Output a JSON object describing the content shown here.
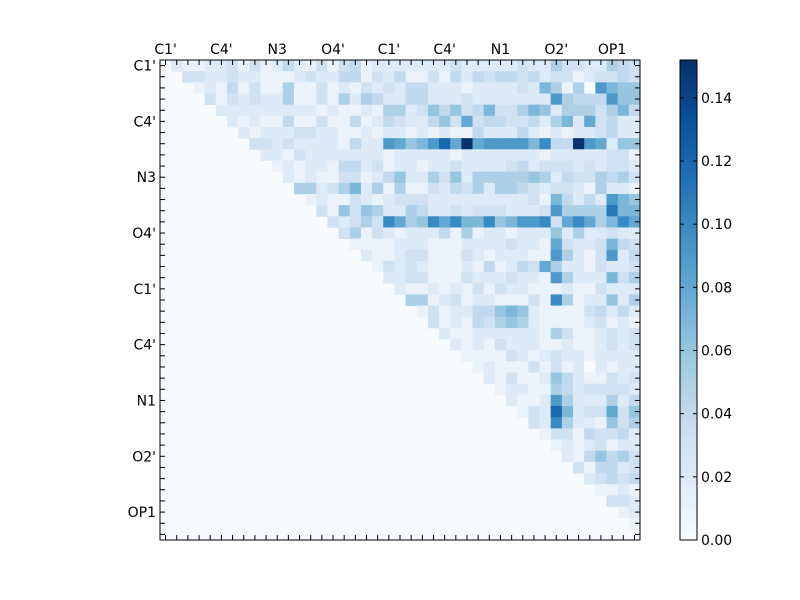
{
  "chart_data": {
    "type": "heatmap",
    "title": "",
    "xlabel": "",
    "ylabel": "",
    "size": 43,
    "tick_every": 5,
    "x_tick_labels": [
      "C1'",
      "C4'",
      "N3",
      "O4'",
      "C1'",
      "C4'",
      "N1",
      "O2'",
      "OP1"
    ],
    "y_tick_labels": [
      "C1'",
      "C4'",
      "N3",
      "O4'",
      "C1'",
      "C4'",
      "N1",
      "O2'",
      "OP1"
    ],
    "colormap": "Blues",
    "colormap_stops": [
      "#f7fbff",
      "#deebf7",
      "#c6dbef",
      "#9ecae1",
      "#6baed6",
      "#4292c6",
      "#2171b5",
      "#08519c",
      "#08306b"
    ],
    "vmin": 0.0,
    "vmax": 0.152,
    "colorbar_ticks": [
      "0.00",
      "0.02",
      "0.04",
      "0.06",
      "0.08",
      "0.10",
      "0.12",
      "0.14"
    ],
    "matrix_note": "upper triangle rows; row i lists columns i+1..42, all other cells 0",
    "upper_triangle_rows": [
      [
        0.02,
        0.01,
        0.01,
        0.02,
        0.02,
        0.03,
        0.01,
        0.03,
        0.01,
        0.02,
        0.04,
        0.02,
        0.01,
        0.03,
        0.01,
        0.03,
        0.04,
        0.01,
        0.02,
        0.02,
        0.02,
        0.02,
        0.02,
        0.02,
        0.02,
        0.03,
        0.02,
        0.02,
        0.02,
        0.02,
        0.02,
        0.03,
        0.02,
        0.02,
        0.05,
        0.03,
        0.03,
        0.02,
        0.02,
        0.05,
        0.04,
        0.03
      ],
      [
        0.03,
        0.03,
        0.02,
        0.02,
        0.03,
        0.02,
        0.02,
        0.01,
        0.01,
        0.01,
        0.02,
        0.03,
        0.02,
        0.02,
        0.04,
        0.04,
        0.01,
        0.03,
        0.02,
        0.04,
        0.01,
        0.01,
        0.03,
        0.01,
        0.04,
        0.02,
        0.04,
        0.03,
        0.04,
        0.04,
        0.03,
        0.04,
        0.02,
        0.03,
        0.03,
        0.01,
        0.02,
        0.03,
        0.03,
        0.04,
        0.03
      ],
      [
        0.01,
        0.02,
        0.01,
        0.04,
        0.01,
        0.03,
        0.01,
        0.01,
        0.05,
        0.01,
        0.01,
        0.03,
        0.01,
        0.02,
        0.01,
        0.03,
        0.02,
        0.03,
        0.02,
        0.04,
        0.04,
        0.02,
        0.02,
        0.02,
        0.01,
        0.02,
        0.02,
        0.02,
        0.02,
        0.03,
        0.02,
        0.07,
        0.05,
        0.01,
        0.05,
        0.0,
        0.09,
        0.07,
        0.06,
        0.06
      ],
      [
        0.03,
        0.01,
        0.03,
        0.02,
        0.03,
        0.02,
        0.02,
        0.05,
        0.01,
        0.01,
        0.03,
        0.01,
        0.05,
        0.02,
        0.05,
        0.04,
        0.02,
        0.02,
        0.04,
        0.04,
        0.02,
        0.02,
        0.02,
        0.03,
        0.02,
        0.02,
        0.02,
        0.02,
        0.02,
        0.02,
        0.02,
        0.09,
        0.05,
        0.04,
        0.04,
        0.04,
        0.09,
        0.06,
        0.06
      ],
      [
        0.02,
        0.02,
        0.02,
        0.02,
        0.02,
        0.02,
        0.02,
        0.02,
        0.02,
        0.01,
        0.02,
        0.01,
        0.01,
        0.02,
        0.01,
        0.05,
        0.05,
        0.02,
        0.03,
        0.06,
        0.04,
        0.06,
        0.03,
        0.04,
        0.07,
        0.03,
        0.03,
        0.05,
        0.07,
        0.06,
        0.02,
        0.05,
        0.05,
        0.05,
        0.03,
        0.05,
        0.07,
        0.04
      ],
      [
        0.02,
        0.01,
        0.02,
        0.01,
        0.01,
        0.04,
        0.01,
        0.01,
        0.03,
        0.01,
        0.01,
        0.04,
        0.01,
        0.02,
        0.04,
        0.03,
        0.02,
        0.02,
        0.04,
        0.06,
        0.03,
        0.08,
        0.03,
        0.04,
        0.04,
        0.03,
        0.03,
        0.04,
        0.02,
        0.05,
        0.07,
        0.02,
        0.08,
        0.03,
        0.04,
        0.02,
        0.02
      ],
      [
        0.02,
        0.01,
        0.02,
        0.02,
        0.02,
        0.03,
        0.03,
        0.02,
        0.02,
        0.01,
        0.01,
        0.02,
        0.01,
        0.02,
        0.02,
        0.01,
        0.02,
        0.01,
        0.02,
        0.01,
        0.01,
        0.04,
        0.02,
        0.02,
        0.02,
        0.04,
        0.02,
        0.01,
        0.02,
        0.01,
        0.02,
        0.02,
        0.03,
        0.04,
        0.02,
        0.02
      ],
      [
        0.03,
        0.03,
        0.02,
        0.03,
        0.02,
        0.02,
        0.02,
        0.02,
        0.01,
        0.04,
        0.02,
        0.02,
        0.09,
        0.08,
        0.06,
        0.07,
        0.09,
        0.12,
        0.08,
        0.15,
        0.08,
        0.09,
        0.09,
        0.09,
        0.09,
        0.07,
        0.1,
        0.04,
        0.04,
        0.15,
        0.09,
        0.08,
        0.02,
        0.06,
        0.06
      ],
      [
        0.02,
        0.02,
        0.01,
        0.03,
        0.02,
        0.02,
        0.02,
        0.02,
        0.02,
        0.02,
        0.02,
        0.01,
        0.02,
        0.02,
        0.02,
        0.02,
        0.02,
        0.01,
        0.02,
        0.02,
        0.02,
        0.02,
        0.02,
        0.02,
        0.02,
        0.01,
        0.02,
        0.02,
        0.02,
        0.02,
        0.02,
        0.03,
        0.03,
        0.01
      ],
      [
        0.01,
        0.02,
        0.01,
        0.02,
        0.02,
        0.01,
        0.04,
        0.04,
        0.02,
        0.03,
        0.01,
        0.02,
        0.02,
        0.01,
        0.02,
        0.02,
        0.03,
        0.02,
        0.02,
        0.02,
        0.02,
        0.03,
        0.04,
        0.02,
        0.03,
        0.03,
        0.03,
        0.02,
        0.03,
        0.02,
        0.03,
        0.03,
        0.02
      ],
      [
        0.02,
        0.01,
        0.02,
        0.01,
        0.01,
        0.03,
        0.03,
        0.01,
        0.02,
        0.04,
        0.06,
        0.02,
        0.02,
        0.05,
        0.03,
        0.06,
        0.02,
        0.05,
        0.05,
        0.05,
        0.05,
        0.05,
        0.06,
        0.05,
        0.02,
        0.04,
        0.03,
        0.03,
        0.05,
        0.04,
        0.05,
        0.03
      ],
      [
        0.05,
        0.05,
        0.02,
        0.03,
        0.05,
        0.07,
        0.02,
        0.05,
        0.01,
        0.05,
        0.01,
        0.01,
        0.03,
        0.02,
        0.04,
        0.03,
        0.05,
        0.02,
        0.05,
        0.05,
        0.04,
        0.03,
        0.02,
        0.03,
        0.03,
        0.02,
        0.01,
        0.05,
        0.02,
        0.02,
        0.01
      ],
      [
        0.01,
        0.02,
        0.01,
        0.01,
        0.03,
        0.02,
        0.01,
        0.02,
        0.03,
        0.03,
        0.03,
        0.02,
        0.02,
        0.02,
        0.02,
        0.02,
        0.02,
        0.02,
        0.02,
        0.02,
        0.03,
        0.01,
        0.07,
        0.04,
        0.02,
        0.04,
        0.02,
        0.09,
        0.07,
        0.06
      ],
      [
        0.03,
        0.01,
        0.06,
        0.03,
        0.06,
        0.05,
        0.02,
        0.02,
        0.05,
        0.04,
        0.02,
        0.02,
        0.03,
        0.02,
        0.03,
        0.03,
        0.03,
        0.02,
        0.02,
        0.02,
        0.03,
        0.09,
        0.05,
        0.05,
        0.05,
        0.05,
        0.11,
        0.07,
        0.07
      ],
      [
        0.03,
        0.02,
        0.03,
        0.05,
        0.03,
        0.1,
        0.08,
        0.05,
        0.06,
        0.1,
        0.08,
        0.1,
        0.07,
        0.07,
        0.1,
        0.06,
        0.07,
        0.09,
        0.09,
        0.1,
        0.03,
        0.08,
        0.1,
        0.08,
        0.05,
        0.07,
        0.1,
        0.08
      ],
      [
        0.03,
        0.05,
        0.01,
        0.03,
        0.02,
        0.01,
        0.02,
        0.02,
        0.02,
        0.04,
        0.01,
        0.05,
        0.01,
        0.02,
        0.02,
        0.01,
        0.02,
        0.02,
        0.02,
        0.06,
        0.02,
        0.05,
        0.02,
        0.02,
        0.03,
        0.02,
        0.02
      ],
      [
        0.01,
        0.01,
        0.01,
        0.01,
        0.02,
        0.02,
        0.02,
        0.01,
        0.01,
        0.01,
        0.02,
        0.02,
        0.02,
        0.02,
        0.03,
        0.02,
        0.02,
        0.01,
        0.08,
        0.03,
        0.02,
        0.02,
        0.03,
        0.07,
        0.04,
        0.03
      ],
      [
        0.02,
        0.01,
        0.01,
        0.02,
        0.03,
        0.03,
        0.01,
        0.01,
        0.01,
        0.03,
        0.02,
        0.01,
        0.02,
        0.02,
        0.02,
        0.01,
        0.01,
        0.09,
        0.05,
        0.02,
        0.01,
        0.03,
        0.09,
        0.02,
        0.04
      ],
      [
        0.01,
        0.03,
        0.02,
        0.03,
        0.02,
        0.01,
        0.01,
        0.01,
        0.02,
        0.01,
        0.04,
        0.01,
        0.02,
        0.04,
        0.03,
        0.08,
        0.05,
        0.02,
        0.02,
        0.01,
        0.03,
        0.02,
        0.02,
        0.03
      ],
      [
        0.02,
        0.02,
        0.03,
        0.03,
        0.01,
        0.01,
        0.01,
        0.03,
        0.02,
        0.02,
        0.02,
        0.03,
        0.02,
        0.02,
        0.01,
        0.09,
        0.05,
        0.02,
        0.02,
        0.02,
        0.07,
        0.03,
        0.05
      ],
      [
        0.02,
        0.01,
        0.01,
        0.02,
        0.01,
        0.02,
        0.01,
        0.03,
        0.01,
        0.03,
        0.02,
        0.02,
        0.01,
        0.01,
        0.01,
        0.02,
        0.01,
        0.01,
        0.03,
        0.02,
        0.02,
        0.02
      ],
      [
        0.05,
        0.05,
        0.01,
        0.02,
        0.03,
        0.01,
        0.02,
        0.02,
        0.01,
        0.01,
        0.01,
        0.03,
        0.01,
        0.1,
        0.05,
        0.01,
        0.02,
        0.02,
        0.06,
        0.02,
        0.05
      ],
      [
        0.01,
        0.03,
        0.01,
        0.02,
        0.02,
        0.04,
        0.04,
        0.06,
        0.07,
        0.06,
        0.02,
        0.01,
        0.01,
        0.01,
        0.01,
        0.03,
        0.04,
        0.02,
        0.04,
        0.02
      ],
      [
        0.03,
        0.01,
        0.02,
        0.01,
        0.04,
        0.03,
        0.05,
        0.06,
        0.05,
        0.02,
        0.01,
        0.01,
        0.01,
        0.01,
        0.02,
        0.03,
        0.01,
        0.02,
        0.01
      ],
      [
        0.02,
        0.01,
        0.01,
        0.02,
        0.02,
        0.02,
        0.02,
        0.02,
        0.02,
        0.01,
        0.05,
        0.03,
        0.01,
        0.01,
        0.02,
        0.03,
        0.02,
        0.03
      ],
      [
        0.02,
        0.01,
        0.02,
        0.01,
        0.03,
        0.02,
        0.02,
        0.02,
        0.01,
        0.01,
        0.02,
        0.01,
        0.01,
        0.02,
        0.03,
        0.02,
        0.03
      ],
      [
        0.01,
        0.01,
        0.01,
        0.01,
        0.03,
        0.02,
        0.01,
        0.02,
        0.03,
        0.02,
        0.02,
        0.01,
        0.02,
        0.02,
        0.02,
        0.02
      ],
      [
        0.01,
        0.02,
        0.01,
        0.01,
        0.01,
        0.03,
        0.01,
        0.03,
        0.01,
        0.02,
        0.0,
        0.02,
        0.01,
        0.02,
        0.02
      ],
      [
        0.02,
        0.01,
        0.03,
        0.01,
        0.01,
        0.02,
        0.06,
        0.04,
        0.02,
        0.01,
        0.01,
        0.03,
        0.02,
        0.03
      ],
      [
        0.01,
        0.02,
        0.02,
        0.01,
        0.01,
        0.05,
        0.04,
        0.02,
        0.03,
        0.03,
        0.03,
        0.03,
        0.02
      ],
      [
        0.02,
        0.01,
        0.01,
        0.02,
        0.09,
        0.05,
        0.02,
        0.02,
        0.02,
        0.05,
        0.02,
        0.04
      ],
      [
        0.01,
        0.03,
        0.02,
        0.12,
        0.07,
        0.02,
        0.03,
        0.03,
        0.08,
        0.03,
        0.06
      ],
      [
        0.03,
        0.02,
        0.1,
        0.05,
        0.02,
        0.02,
        0.01,
        0.06,
        0.03,
        0.05
      ],
      [
        0.01,
        0.03,
        0.03,
        0.01,
        0.04,
        0.03,
        0.03,
        0.04,
        0.02
      ],
      [
        0.01,
        0.02,
        0.01,
        0.02,
        0.03,
        0.01,
        0.02,
        0.02
      ],
      [
        0.02,
        0.01,
        0.04,
        0.06,
        0.04,
        0.05,
        0.03
      ],
      [
        0.03,
        0.01,
        0.04,
        0.04,
        0.02,
        0.03
      ],
      [
        0.02,
        0.03,
        0.04,
        0.03,
        0.04
      ],
      [
        0.01,
        0.01,
        0.02,
        0.01
      ],
      [
        0.03,
        0.03,
        0.02
      ],
      [
        0.01,
        0.02
      ],
      [
        0.01
      ],
      []
    ]
  }
}
